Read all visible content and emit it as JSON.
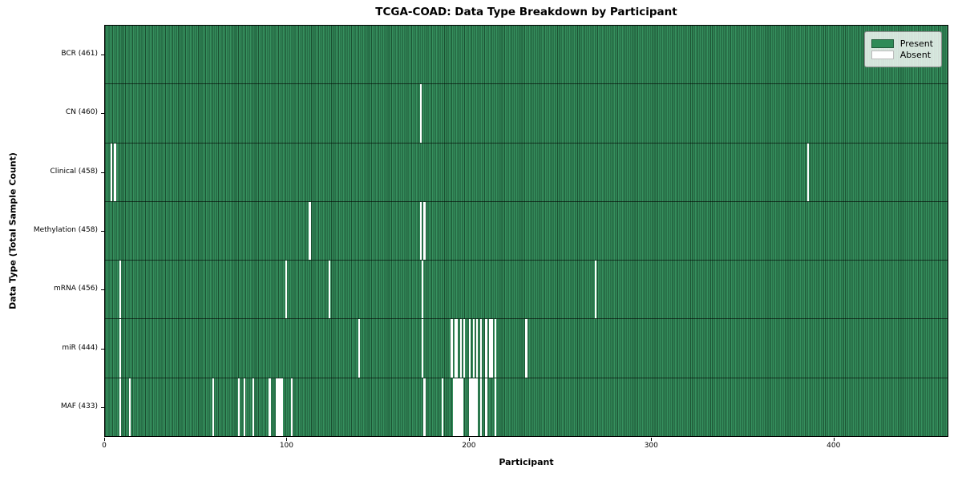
{
  "chart_data": {
    "type": "heatmap",
    "title": "TCGA-COAD: Data Type Breakdown by Participant",
    "xlabel": "Participant",
    "ylabel": "Data Type (Total Sample Count)",
    "x_axis": {
      "min": 0,
      "max": 463,
      "ticks": [
        0,
        100,
        200,
        300,
        400
      ]
    },
    "n_participants": 461,
    "grid": false,
    "legend": {
      "position": "upper right",
      "entries": [
        {
          "label": "Present",
          "color": "#2e8b57"
        },
        {
          "label": "Absent",
          "color": "#ffffff"
        }
      ]
    },
    "colors": {
      "present": "#2e8b57",
      "absent": "#ffffff"
    },
    "rows": [
      {
        "label": "BCR",
        "total": 461,
        "display": "BCR (461)",
        "absent_participants": []
      },
      {
        "label": "CN",
        "total": 460,
        "display": "CN (460)",
        "absent_participants": [
          173
        ]
      },
      {
        "label": "Clinical",
        "total": 458,
        "display": "Clinical (458)",
        "absent_participants": [
          3,
          5,
          386
        ]
      },
      {
        "label": "Methylation",
        "total": 458,
        "display": "Methylation (458)",
        "absent_participants": [
          112,
          173,
          175
        ]
      },
      {
        "label": "mRNA",
        "total": 456,
        "display": "mRNA (456)",
        "absent_participants": [
          8,
          99,
          123,
          174,
          269
        ]
      },
      {
        "label": "miR",
        "total": 444,
        "display": "miR (444)",
        "absent_participants": [
          8,
          139,
          174,
          190,
          192,
          193,
          195,
          197,
          200,
          202,
          204,
          206,
          209,
          211,
          212,
          214,
          231
        ]
      },
      {
        "label": "MAF",
        "total": 433,
        "display": "MAF (433)",
        "absent_participants": [
          8,
          13,
          59,
          73,
          76,
          81,
          90,
          94,
          95,
          96,
          97,
          102,
          175,
          185,
          191,
          192,
          193,
          194,
          195,
          196,
          200,
          201,
          202,
          203,
          204,
          206,
          209,
          214
        ]
      }
    ]
  }
}
